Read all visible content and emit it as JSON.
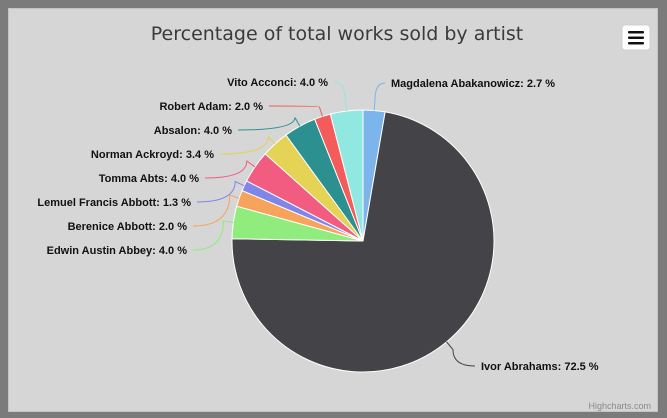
{
  "chart_data": {
    "type": "pie",
    "title": "Percentage of total works sold by artist",
    "series": [
      {
        "name": "Magdalena Abakanowicz",
        "value": 2.7,
        "color": "#7cb5ec"
      },
      {
        "name": "Ivor Abrahams",
        "value": 72.5,
        "color": "#434348"
      },
      {
        "name": "Edwin Austin Abbey",
        "value": 4.0,
        "color": "#90ed7d"
      },
      {
        "name": "Berenice Abbott",
        "value": 2.0,
        "color": "#f7a35c"
      },
      {
        "name": "Lemuel Francis Abbott",
        "value": 1.3,
        "color": "#8085e9"
      },
      {
        "name": "Tomma Abts",
        "value": 4.0,
        "color": "#f15c80"
      },
      {
        "name": "Norman Ackroyd",
        "value": 3.4,
        "color": "#e4d354"
      },
      {
        "name": "Absalon",
        "value": 4.0,
        "color": "#2b908f"
      },
      {
        "name": "Robert Adam",
        "value": 2.0,
        "color": "#f45b5b"
      },
      {
        "name": "Vito Acconci",
        "value": 4.0,
        "color": "#91e8e1"
      }
    ],
    "label_suffix": " %"
  },
  "credits": "Highcharts.com",
  "menu_icon": "hamburger-menu-icon"
}
